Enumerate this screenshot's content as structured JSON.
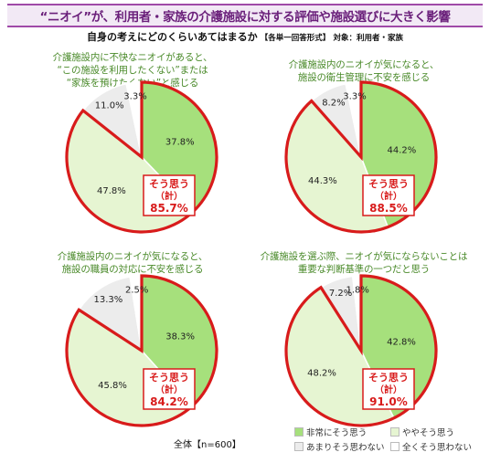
{
  "header": {
    "title": "“ニオイ”が、利用者・家族の介護施設に対する評価や施設選びに大きく影響",
    "question": "自身の考えにどのくらいあてはまるか",
    "format": "【各単一回答形式】",
    "target": "対象：利用者・家族"
  },
  "total_label": "全体【n=600】",
  "colors": {
    "strongly_agree": "#a6e07c",
    "somewhat_agree": "#e6f5d2",
    "not_really": "#ececec",
    "not_at_all": "#ffffff",
    "highlight": "#d81b1b",
    "title_green": "#4a8a2a"
  },
  "legend": [
    "非常にそう思う",
    "ややそう思う",
    "あまりそう思わない",
    "全くそう思わない"
  ],
  "chart_data": [
    {
      "type": "pie",
      "title_lines": [
        "介護施設内に不快なニオイがあると、",
        "“この施設を利用したくない”または",
        "“家族を預けたくない”と感じる"
      ],
      "categories": [
        "非常にそう思う",
        "ややそう思う",
        "あまりそう思わない",
        "全くそう思わない"
      ],
      "values": [
        37.8,
        47.8,
        11.0,
        3.3
      ],
      "labels": [
        "37.8%",
        "47.8%",
        "11.0%",
        "3.3%"
      ],
      "callout": [
        "そう思う",
        "（計）",
        "85.7%"
      ]
    },
    {
      "type": "pie",
      "title_lines": [
        "介護施設内のニオイが気になると、",
        "施設の衛生管理に不安を感じる"
      ],
      "categories": [
        "非常にそう思う",
        "ややそう思う",
        "あまりそう思わない",
        "全くそう思わない"
      ],
      "values": [
        44.2,
        44.3,
        8.2,
        3.3
      ],
      "labels": [
        "44.2%",
        "44.3%",
        "8.2%",
        "3.3%"
      ],
      "callout": [
        "そう思う",
        "（計）",
        "88.5%"
      ]
    },
    {
      "type": "pie",
      "title_lines": [
        "介護施設内のニオイが気になると、",
        "施設の職員の対応に不安を感じる"
      ],
      "categories": [
        "非常にそう思う",
        "ややそう思う",
        "あまりそう思わない",
        "全くそう思わない"
      ],
      "values": [
        38.3,
        45.8,
        13.3,
        2.5
      ],
      "labels": [
        "38.3%",
        "45.8%",
        "13.3%",
        "2.5%"
      ],
      "callout": [
        "そう思う",
        "（計）",
        "84.2%"
      ]
    },
    {
      "type": "pie",
      "title_lines": [
        "介護施設を選ぶ際、ニオイが気にならないことは",
        "重要な判断基準の一つだと思う"
      ],
      "categories": [
        "非常にそう思う",
        "ややそう思う",
        "あまりそう思わない",
        "全くそう思わない"
      ],
      "values": [
        42.8,
        48.2,
        7.2,
        1.8
      ],
      "labels": [
        "42.8%",
        "48.2%",
        "7.2%",
        "1.8%"
      ],
      "callout": [
        "そう思う",
        "（計）",
        "91.0%"
      ]
    }
  ]
}
